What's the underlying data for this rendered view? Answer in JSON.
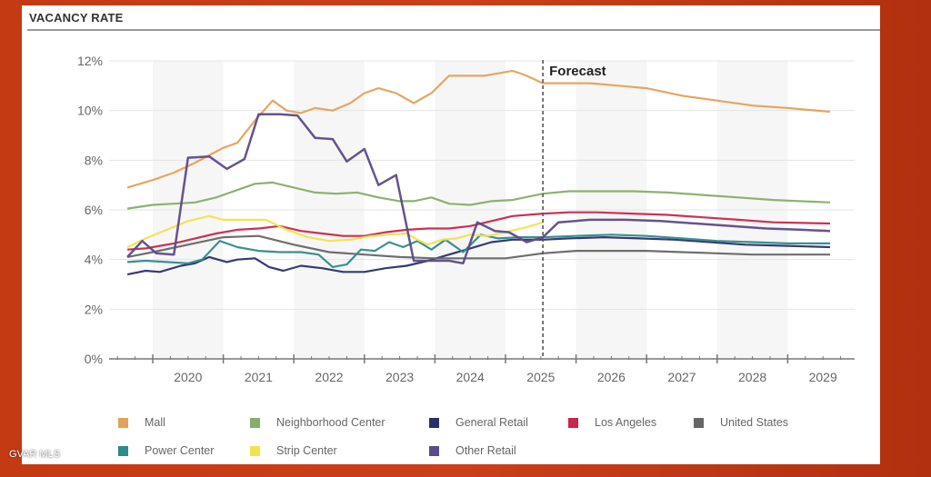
{
  "watermark": "GVAR MLS",
  "chart_data": {
    "type": "line",
    "title": "VACANCY RATE",
    "xlabel": "",
    "ylabel": "",
    "ylim": [
      0,
      12
    ],
    "xlim": [
      2019.35,
      2029.95
    ],
    "yticks": [
      "0%",
      "2%",
      "4%",
      "6%",
      "8%",
      "10%",
      "12%"
    ],
    "ytick_values": [
      0,
      2,
      4,
      6,
      8,
      10,
      12
    ],
    "xtick_labels": [
      "2020",
      "2021",
      "2022",
      "2023",
      "2024",
      "2025",
      "2026",
      "2027",
      "2028",
      "2029"
    ],
    "grid": "horizontal",
    "annotation": {
      "label": "Forecast",
      "x": 2025.53
    },
    "legend_position": "bottom",
    "series": [
      {
        "name": "Mall",
        "color": "#e3a15a",
        "x": [
          2019.64,
          2020.0,
          2020.3,
          2020.6,
          2020.8,
          2021.0,
          2021.2,
          2021.45,
          2021.7,
          2021.9,
          2022.1,
          2022.3,
          2022.55,
          2022.8,
          2023.0,
          2023.2,
          2023.45,
          2023.7,
          2023.95,
          2024.2,
          2024.45,
          2024.7,
          2024.9,
          2025.1,
          2025.3,
          2025.53,
          2025.8,
          2026.2,
          2026.6,
          2027.0,
          2027.5,
          2028.0,
          2028.5,
          2029.0,
          2029.6
        ],
        "y": [
          6.9,
          7.2,
          7.5,
          7.9,
          8.2,
          8.5,
          8.7,
          9.6,
          10.4,
          10.0,
          9.9,
          10.1,
          10.0,
          10.3,
          10.7,
          10.9,
          10.7,
          10.3,
          10.7,
          11.4,
          11.4,
          11.4,
          11.5,
          11.6,
          11.4,
          11.1,
          11.1,
          11.1,
          11.0,
          10.9,
          10.6,
          10.4,
          10.2,
          10.1,
          9.95
        ]
      },
      {
        "name": "Neighborhood Center",
        "color": "#86ad6a",
        "x": [
          2019.64,
          2020.0,
          2020.3,
          2020.6,
          2020.9,
          2021.2,
          2021.45,
          2021.7,
          2022.0,
          2022.3,
          2022.6,
          2022.9,
          2023.2,
          2023.5,
          2023.7,
          2023.95,
          2024.2,
          2024.5,
          2024.8,
          2025.1,
          2025.53,
          2025.9,
          2026.3,
          2026.8,
          2027.3,
          2027.8,
          2028.3,
          2028.8,
          2029.6
        ],
        "y": [
          6.05,
          6.2,
          6.25,
          6.3,
          6.5,
          6.8,
          7.05,
          7.1,
          6.9,
          6.7,
          6.65,
          6.7,
          6.5,
          6.35,
          6.35,
          6.5,
          6.25,
          6.2,
          6.35,
          6.4,
          6.65,
          6.75,
          6.75,
          6.75,
          6.7,
          6.6,
          6.5,
          6.4,
          6.3
        ]
      },
      {
        "name": "General Retail",
        "color": "#2a2f6b",
        "x": [
          2019.64,
          2019.9,
          2020.1,
          2020.4,
          2020.6,
          2020.8,
          2021.05,
          2021.2,
          2021.45,
          2021.65,
          2021.85,
          2022.1,
          2022.4,
          2022.7,
          2023.0,
          2023.3,
          2023.6,
          2023.9,
          2024.2,
          2024.5,
          2024.8,
          2025.1,
          2025.53,
          2025.9,
          2026.4,
          2026.9,
          2027.4,
          2027.9,
          2028.4,
          2029.0,
          2029.6
        ],
        "y": [
          3.4,
          3.55,
          3.5,
          3.75,
          3.85,
          4.1,
          3.9,
          4.0,
          4.05,
          3.7,
          3.55,
          3.75,
          3.65,
          3.5,
          3.5,
          3.65,
          3.75,
          3.95,
          4.2,
          4.45,
          4.7,
          4.8,
          4.8,
          4.85,
          4.9,
          4.85,
          4.8,
          4.7,
          4.6,
          4.55,
          4.5
        ]
      },
      {
        "name": "Los Angeles",
        "color": "#c8264a",
        "x": [
          2019.64,
          2019.9,
          2020.0,
          2020.3,
          2020.6,
          2020.9,
          2021.2,
          2021.5,
          2021.8,
          2022.1,
          2022.4,
          2022.7,
          2023.0,
          2023.3,
          2023.6,
          2023.9,
          2024.2,
          2024.5,
          2024.8,
          2025.1,
          2025.53,
          2025.9,
          2026.3,
          2026.8,
          2027.3,
          2027.8,
          2028.3,
          2028.8,
          2029.6
        ],
        "y": [
          4.4,
          4.45,
          4.5,
          4.65,
          4.85,
          5.05,
          5.2,
          5.25,
          5.35,
          5.15,
          5.05,
          4.95,
          4.95,
          5.1,
          5.2,
          5.25,
          5.25,
          5.35,
          5.55,
          5.75,
          5.85,
          5.9,
          5.9,
          5.85,
          5.8,
          5.7,
          5.6,
          5.5,
          5.45
        ]
      },
      {
        "name": "United States",
        "color": "#666666",
        "x": [
          2019.64,
          2020.0,
          2020.5,
          2021.0,
          2021.5,
          2022.0,
          2022.5,
          2023.0,
          2023.5,
          2024.0,
          2024.5,
          2025.0,
          2025.53,
          2026.0,
          2026.5,
          2027.0,
          2027.5,
          2028.0,
          2028.5,
          2029.0,
          2029.6
        ],
        "y": [
          4.1,
          4.3,
          4.6,
          4.9,
          4.95,
          4.6,
          4.3,
          4.2,
          4.1,
          4.05,
          4.05,
          4.05,
          4.25,
          4.35,
          4.35,
          4.35,
          4.3,
          4.25,
          4.2,
          4.2,
          4.2
        ]
      },
      {
        "name": "Power Center",
        "color": "#2e8a8c",
        "x": [
          2019.64,
          2019.9,
          2020.2,
          2020.5,
          2020.7,
          2020.95,
          2021.2,
          2021.5,
          2021.8,
          2022.1,
          2022.35,
          2022.55,
          2022.75,
          2022.95,
          2023.15,
          2023.35,
          2023.55,
          2023.75,
          2023.95,
          2024.15,
          2024.4,
          2024.65,
          2024.9,
          2025.2,
          2025.53,
          2026.0,
          2026.5,
          2027.0,
          2027.5,
          2028.0,
          2028.5,
          2029.0,
          2029.6
        ],
        "y": [
          3.9,
          3.95,
          3.9,
          3.85,
          4.0,
          4.75,
          4.5,
          4.35,
          4.3,
          4.3,
          4.2,
          3.7,
          3.8,
          4.4,
          4.35,
          4.7,
          4.5,
          4.75,
          4.4,
          4.8,
          4.3,
          5.0,
          4.85,
          4.9,
          4.9,
          4.95,
          5.0,
          4.95,
          4.85,
          4.75,
          4.7,
          4.65,
          4.65
        ]
      },
      {
        "name": "Strip Center",
        "color": "#f3e24a",
        "x": [
          2019.64,
          2019.9,
          2020.2,
          2020.5,
          2020.8,
          2021.0,
          2021.3,
          2021.6,
          2021.9,
          2022.2,
          2022.5,
          2022.8,
          2023.1,
          2023.35,
          2023.6,
          2023.75,
          2023.9,
          2024.1,
          2024.3,
          2024.5,
          2024.75,
          2025.0,
          2025.3,
          2025.53
        ],
        "y": [
          4.5,
          4.85,
          5.2,
          5.55,
          5.75,
          5.6,
          5.6,
          5.6,
          5.2,
          4.9,
          4.75,
          4.8,
          4.95,
          5.0,
          5.05,
          4.8,
          4.6,
          4.8,
          4.85,
          5.0,
          4.95,
          5.1,
          5.3,
          5.5
        ]
      },
      {
        "name": "Other Retail",
        "color": "#5d4a8a",
        "x": [
          2019.64,
          2019.85,
          2020.05,
          2020.3,
          2020.5,
          2020.8,
          2021.05,
          2021.3,
          2021.5,
          2021.8,
          2022.05,
          2022.3,
          2022.55,
          2022.75,
          2023.0,
          2023.2,
          2023.45,
          2023.7,
          2023.95,
          2024.2,
          2024.4,
          2024.6,
          2024.85,
          2025.05,
          2025.3,
          2025.53,
          2025.75,
          2026.2,
          2026.7,
          2027.2,
          2027.7,
          2028.2,
          2028.7,
          2029.2,
          2029.6
        ],
        "y": [
          4.1,
          4.75,
          4.25,
          4.2,
          8.1,
          8.15,
          7.65,
          8.05,
          9.85,
          9.85,
          9.8,
          8.9,
          8.85,
          7.95,
          8.45,
          7.0,
          7.4,
          3.95,
          3.95,
          3.95,
          3.85,
          5.5,
          5.15,
          5.1,
          4.7,
          4.9,
          5.5,
          5.6,
          5.6,
          5.55,
          5.45,
          5.35,
          5.25,
          5.2,
          5.15
        ]
      }
    ]
  }
}
